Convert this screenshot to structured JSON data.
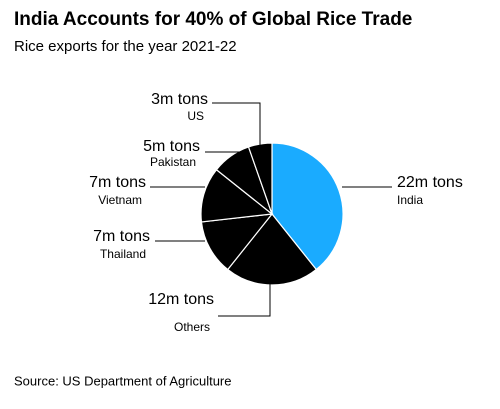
{
  "chart_data": {
    "type": "pie",
    "title": "India Accounts for 40% of Global Rice Trade",
    "subtitle": "Rice exports for the year 2021-22",
    "source": "Source: US Department of Agriculture",
    "categories": [
      "India",
      "Others",
      "Thailand",
      "Vietnam",
      "Pakistan",
      "US"
    ],
    "values": [
      22,
      12,
      7,
      7,
      5,
      3
    ],
    "value_labels": [
      "22m tons",
      "12m tons",
      "7m tons",
      "7m tons",
      "5m tons",
      "3m tons"
    ],
    "colors": [
      "#1aabff",
      "#000000",
      "#000000",
      "#000000",
      "#000000",
      "#000000"
    ]
  }
}
